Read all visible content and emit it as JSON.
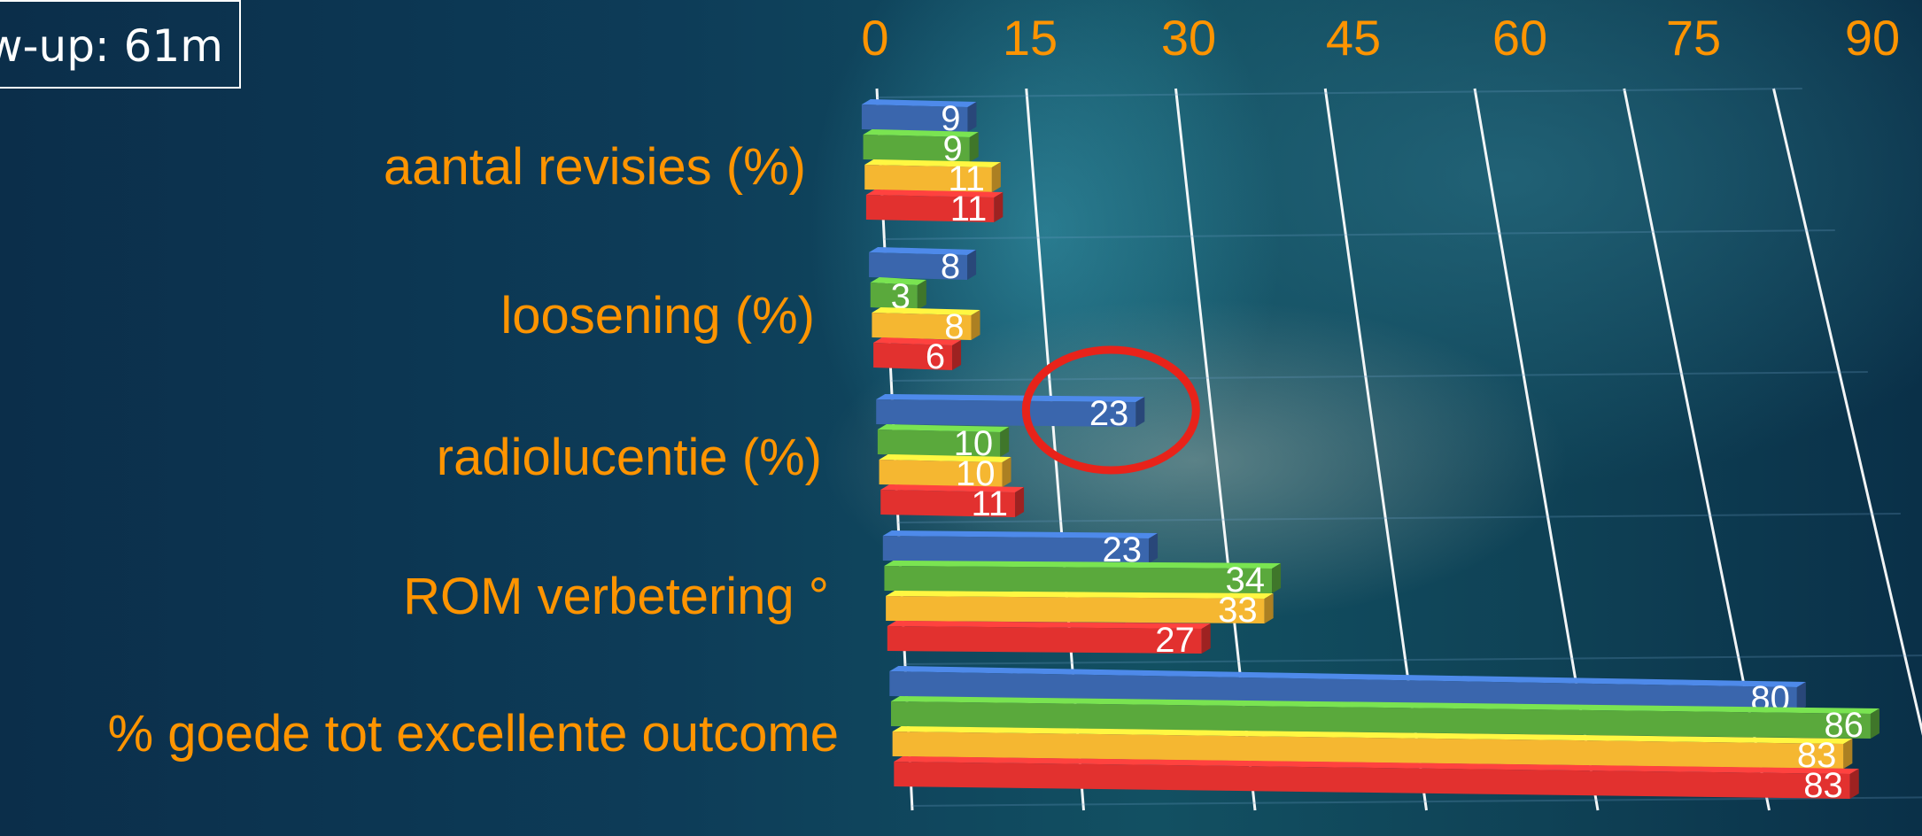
{
  "followup_label": "w-up: 61m",
  "chart_data": {
    "type": "bar",
    "orientation": "horizontal",
    "title": "",
    "xlim": [
      0,
      90
    ],
    "x_ticks": [
      "0",
      "15",
      "30",
      "45",
      "60",
      "75",
      "90"
    ],
    "categories": [
      "aantal revisies (%)",
      "loosening (%)",
      "radiolucentie (%)",
      "ROM verbetering °",
      "% goede tot excellente outcome"
    ],
    "series": [
      {
        "color": "#3a66ad",
        "values": [
          9,
          8,
          23,
          23,
          80
        ]
      },
      {
        "color": "#5aa93c",
        "values": [
          9,
          3,
          10,
          34,
          86
        ]
      },
      {
        "color": "#f5b731",
        "values": [
          11,
          8,
          10,
          33,
          83
        ]
      },
      {
        "color": "#e2312f",
        "values": [
          11,
          6,
          11,
          27,
          83
        ]
      }
    ],
    "grid": true,
    "legend": "none",
    "highlight": {
      "category": "radiolucentie (%)",
      "series_index": 0,
      "color": "#e8231a"
    },
    "colors": {
      "tick_text": "#ff9400",
      "category_text": "#ff9400",
      "grid": "#ffffff",
      "value_text": "#ffffff"
    }
  }
}
